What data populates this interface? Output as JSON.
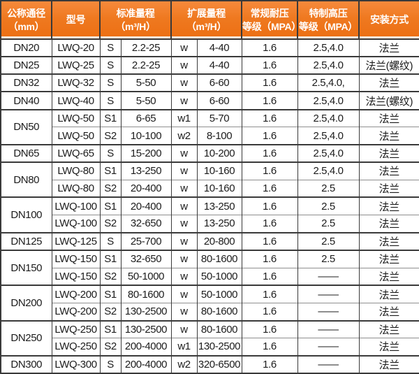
{
  "colors": {
    "header_bg": "#ef7920",
    "header_bg_top": "#f68a3c",
    "header_bg_bottom": "#ec6f13",
    "header_text": "#ffffff",
    "grid": "#3a3a3a",
    "inner_grid": "#8f8f8f",
    "body_text": "#1c1c1c",
    "row_bg": "#ffffff"
  },
  "table": {
    "column_headers": {
      "dn": {
        "lines": [
          "公称通径",
          "（mm）"
        ]
      },
      "model": {
        "lines": [
          "型号"
        ]
      },
      "std_range": {
        "lines": [
          "标准量程",
          "（m³/H）"
        ]
      },
      "ext_range": {
        "lines": [
          "扩展量程",
          "（m³/H）"
        ]
      },
      "normal_pressure": {
        "lines": [
          "常规耐压",
          "等级（MPA）"
        ]
      },
      "high_pressure": {
        "lines": [
          "特制高压",
          "等级（MPA）"
        ]
      },
      "install": {
        "lines": [
          "安装方式"
        ]
      }
    },
    "groups": [
      {
        "dn": "DN20",
        "rows": [
          {
            "model": "LWQ-20",
            "s_code": "S",
            "std": "2.2-25",
            "w_code": "w",
            "ext": "4-40",
            "np": "1.6",
            "hp": "2.5,4.0",
            "install": "法兰"
          }
        ]
      },
      {
        "dn": "DN25",
        "rows": [
          {
            "model": "LWQ-25",
            "s_code": "S",
            "std": "2.2-25",
            "w_code": "w",
            "ext": "4-40",
            "np": "1.6",
            "hp": "2.5,4.0",
            "install": "法兰(螺纹)"
          }
        ]
      },
      {
        "dn": "DN32",
        "rows": [
          {
            "model": "LWQ-32",
            "s_code": "S",
            "std": "5-50",
            "w_code": "w",
            "ext": "6-60",
            "np": "1.6",
            "hp": "2.5,4.0,",
            "install": "法兰"
          }
        ]
      },
      {
        "dn": "DN40",
        "rows": [
          {
            "model": "LWQ-40",
            "s_code": "S",
            "std": "5-50",
            "w_code": "w",
            "ext": "6-60",
            "np": "1.6",
            "hp": "2.5,4.0",
            "install": "法兰(螺纹)"
          }
        ]
      },
      {
        "dn": "DN50",
        "rows": [
          {
            "model": "LWQ-50",
            "s_code": "S1",
            "std": "6-65",
            "w_code": "w1",
            "ext": "5-70",
            "np": "1.6",
            "hp": "2.5,4.0",
            "install": "法兰"
          },
          {
            "model": "LWQ-50",
            "s_code": "S2",
            "std": "10-100",
            "w_code": "w2",
            "ext": "8-100",
            "np": "1.6",
            "hp": "2.5,4.0",
            "install": "法兰"
          }
        ]
      },
      {
        "dn": "DN65",
        "rows": [
          {
            "model": "LWQ-65",
            "s_code": "S",
            "std": "15-200",
            "w_code": "w",
            "ext": "10-200",
            "np": "1.6",
            "hp": "2.5,4.0",
            "install": "法兰"
          }
        ]
      },
      {
        "dn": "DN80",
        "rows": [
          {
            "model": "LWQ-80",
            "s_code": "S1",
            "std": "13-250",
            "w_code": "w",
            "ext": "10-160",
            "np": "1.6",
            "hp": "2.5,4.0",
            "install": "法兰"
          },
          {
            "model": "LWQ-80",
            "s_code": "S2",
            "std": "20-400",
            "w_code": "w",
            "ext": "10-160",
            "np": "1.6",
            "hp": "2.5",
            "install": "法兰"
          }
        ]
      },
      {
        "dn": "DN100",
        "rows": [
          {
            "model": "LWQ-100",
            "s_code": "S1",
            "std": "20-400",
            "w_code": "w",
            "ext": "13-250",
            "np": "1.6",
            "hp": "2.5",
            "install": "法兰"
          },
          {
            "model": "LWQ-100",
            "s_code": "S2",
            "std": "32-650",
            "w_code": "w",
            "ext": "13-250",
            "np": "1.6",
            "hp": "2.5",
            "install": "法兰"
          }
        ]
      },
      {
        "dn": "DN125",
        "rows": [
          {
            "model": "LWQ-125",
            "s_code": "S",
            "std": "25-700",
            "w_code": "w",
            "ext": "20-800",
            "np": "1.6",
            "hp": "2.5",
            "install": "法兰"
          }
        ]
      },
      {
        "dn": "DN150",
        "rows": [
          {
            "model": "LWQ-150",
            "s_code": "S1",
            "std": "32-650",
            "w_code": "w",
            "ext": "80-1600",
            "np": "1.6",
            "hp": "2.5",
            "install": "法兰"
          },
          {
            "model": "LWQ-150",
            "s_code": "S2",
            "std": "50-1000",
            "w_code": "w",
            "ext": "50-1000",
            "np": "1.6",
            "hp": "——",
            "install": "法兰"
          }
        ]
      },
      {
        "dn": "DN200",
        "rows": [
          {
            "model": "LWQ-200",
            "s_code": "S1",
            "std": "80-1600",
            "w_code": "w",
            "ext": "50-1000",
            "np": "1.6",
            "hp": "——",
            "install": "法兰"
          },
          {
            "model": "LWQ-200",
            "s_code": "S2",
            "std": "130-2500",
            "w_code": "w",
            "ext": "80-1600",
            "np": "1.6",
            "hp": "——",
            "install": "法兰"
          }
        ]
      },
      {
        "dn": "DN250",
        "rows": [
          {
            "model": "LWQ-250",
            "s_code": "S1",
            "std": "130-2500",
            "w_code": "w",
            "ext": "80-1600",
            "np": "1.6",
            "hp": "——",
            "install": "法兰"
          },
          {
            "model": "LWQ-250",
            "s_code": "S2",
            "std": "200-4000",
            "w_code": "w1",
            "ext": "130-2500",
            "np": "1.6",
            "hp": "——",
            "install": "法兰"
          }
        ]
      },
      {
        "dn": "DN300",
        "rows": [
          {
            "model": "LWQ-300",
            "s_code": "S",
            "std": "200-4000",
            "w_code": "w2",
            "ext": "320-6500",
            "np": "1.6",
            "hp": "——",
            "install": "法兰"
          }
        ]
      }
    ]
  }
}
